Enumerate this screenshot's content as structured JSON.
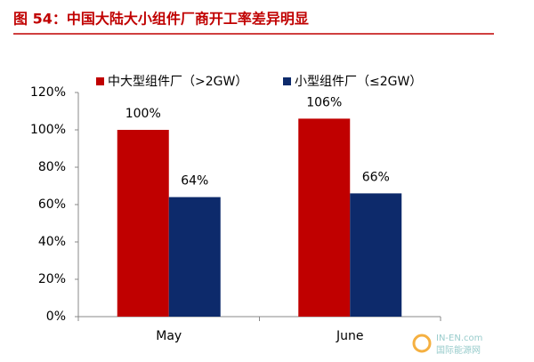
{
  "chart_data": {
    "type": "bar",
    "title": "图 54：中国大陆大小组件厂商开工率差异明显",
    "categories": [
      "May",
      "June"
    ],
    "series": [
      {
        "name": "中大型组件厂（>2GW）",
        "color": "#c00000",
        "values": [
          100,
          106
        ],
        "value_labels": [
          "100%",
          "106%"
        ]
      },
      {
        "name": "小型组件厂（≤2GW）",
        "color": "#0d2a6b",
        "values": [
          64,
          66
        ],
        "value_labels": [
          "64%",
          "66%"
        ]
      }
    ],
    "ylim": [
      0,
      120
    ],
    "yticks": [
      {
        "value": 0,
        "label": "0%"
      },
      {
        "value": 20,
        "label": "20%"
      },
      {
        "value": 40,
        "label": "40%"
      },
      {
        "value": 60,
        "label": "60%"
      },
      {
        "value": 80,
        "label": "80%"
      },
      {
        "value": 100,
        "label": "100%"
      },
      {
        "value": 120,
        "label": "120%"
      }
    ],
    "legend": "top",
    "watermark": [
      "IN-EN.com",
      "国际能源网"
    ]
  }
}
